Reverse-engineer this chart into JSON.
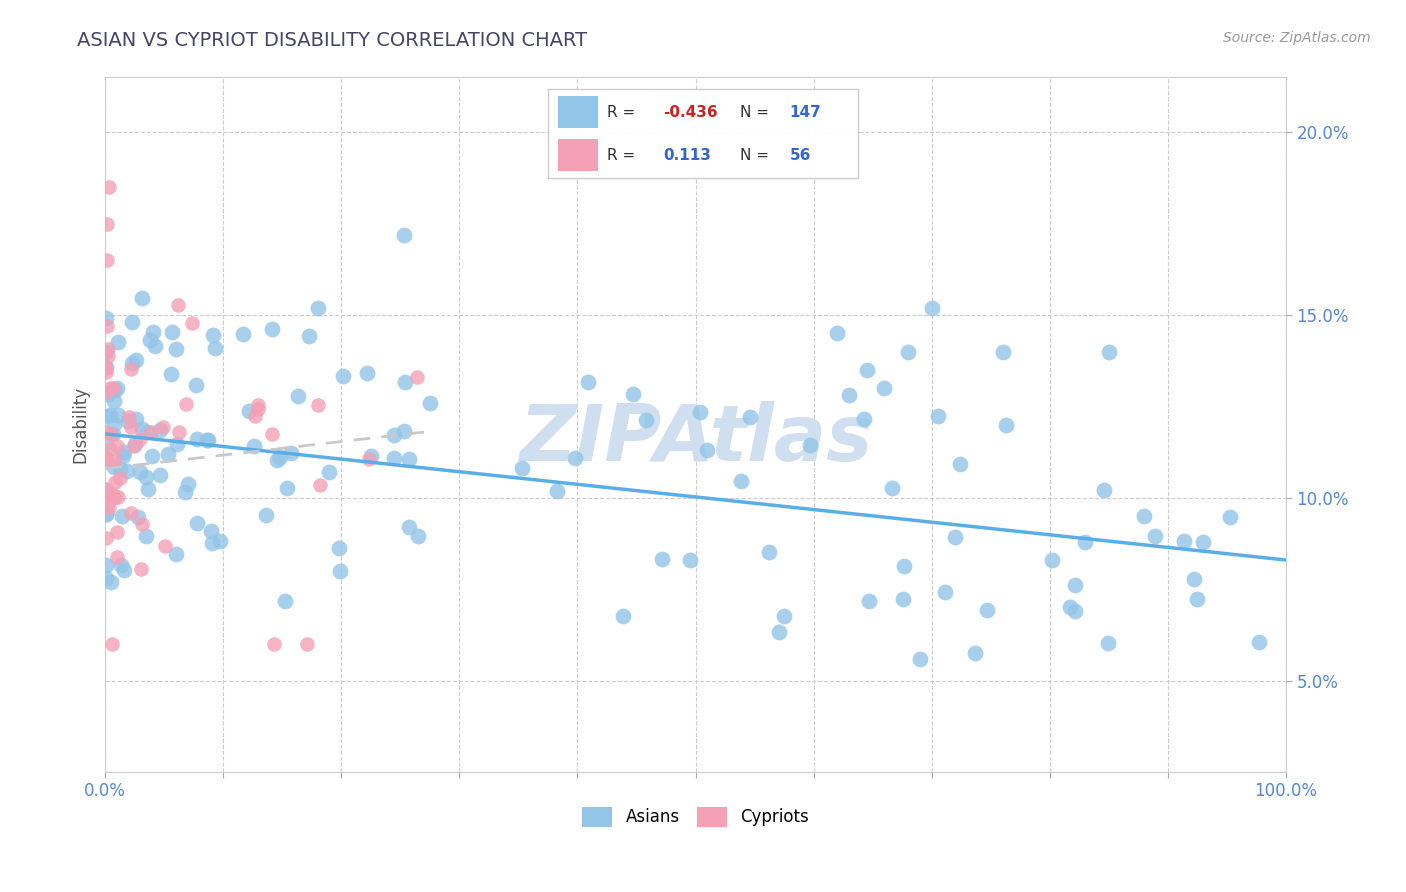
{
  "title": "ASIAN VS CYPRIOT DISABILITY CORRELATION CHART",
  "source": "Source: ZipAtlas.com",
  "ylabel": "Disability",
  "xlim": [
    0,
    1.0
  ],
  "ylim": [
    0.025,
    0.215
  ],
  "ytick_positions": [
    0.05,
    0.1,
    0.15,
    0.2
  ],
  "ytick_labels": [
    "5.0%",
    "10.0%",
    "15.0%",
    "20.0%"
  ],
  "xtick_positions": [
    0.0,
    0.1,
    0.2,
    0.3,
    0.4,
    0.5,
    0.6,
    0.7,
    0.8,
    0.9,
    1.0
  ],
  "xtick_labels": [
    "0.0%",
    "",
    "",
    "",
    "",
    "",
    "",
    "",
    "",
    "",
    "100.0%"
  ],
  "legend_R1": "-0.436",
  "legend_N1": "147",
  "legend_R2": "0.113",
  "legend_N2": "56",
  "blue_color": "#92c5e8",
  "pink_color": "#f4a0b5",
  "trend_blue_color": "#5aaee8",
  "trend_pink_color": "#c8c8c8",
  "watermark": "ZIPAtlas",
  "watermark_color": "#d0dff0",
  "blue_trend_y_start": 0.1175,
  "blue_trend_y_end": 0.083,
  "pink_trend_x_start": 0.0,
  "pink_trend_x_end": 0.27,
  "pink_trend_y_start": 0.108,
  "pink_trend_y_end": 0.118,
  "title_color": "#444466",
  "source_color": "#999999",
  "axis_tick_color": "#5588cc",
  "ylabel_color": "#555555",
  "grid_color": "#cccccc"
}
